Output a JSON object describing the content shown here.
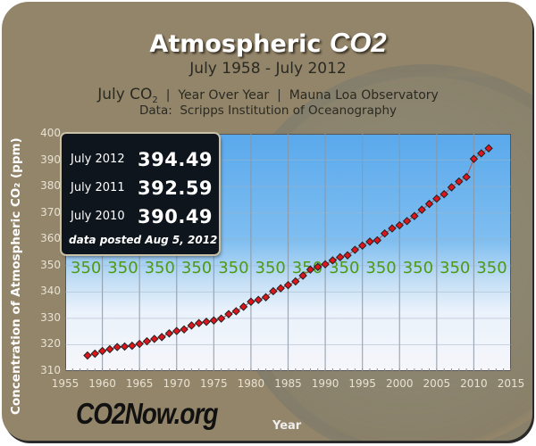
{
  "header": {
    "title_main": "Atmospheric ",
    "title_co2": "CO2",
    "subtitle": "July 1958 - July 2012",
    "meta_prefix": "July CO",
    "meta_sub": "2",
    "meta_rest": "  |  Year Over Year  |  Mauna Loa Observatory",
    "source": "Data:  Scripps Institution of Oceanography"
  },
  "infobox": {
    "rows": [
      {
        "label": "July 2012",
        "value": "394.49"
      },
      {
        "label": "July 2011",
        "value": "392.59"
      },
      {
        "label": "July 2010",
        "value": "390.49"
      }
    ],
    "posted": "data posted Aug 5, 2012"
  },
  "axes": {
    "ylabel": "Concentration of Atmospheric CO₂ (ppm)",
    "xlabel": "Year",
    "yticks": [
      "400",
      "390",
      "380",
      "370",
      "360",
      "350",
      "340",
      "330",
      "320",
      "310"
    ],
    "xticks": [
      "1955",
      "1960",
      "1965",
      "1970",
      "1975",
      "1980",
      "1985",
      "1990",
      "1995",
      "2000",
      "2005",
      "2010",
      "2015"
    ]
  },
  "reference_line": {
    "value": "350",
    "color": "#4f9a12",
    "count": 12
  },
  "logo": "CO2Now.org",
  "colors": {
    "frame": "#93856a",
    "marker": "#e0141b",
    "reference": "#4f9a12",
    "infobox_bg": "#0f151c"
  },
  "chart_data": {
    "type": "scatter",
    "title": "Atmospheric CO2",
    "subtitle": "July 1958 - July 2012",
    "xlabel": "Year",
    "ylabel": "Concentration of Atmospheric CO2 (ppm)",
    "xlim": [
      1955,
      2015
    ],
    "ylim": [
      310,
      400
    ],
    "grid": true,
    "reference_line": 350,
    "x": [
      1958,
      1959,
      1960,
      1961,
      1962,
      1963,
      1964,
      1965,
      1966,
      1967,
      1968,
      1969,
      1970,
      1971,
      1972,
      1973,
      1974,
      1975,
      1976,
      1977,
      1978,
      1979,
      1980,
      1981,
      1982,
      1983,
      1984,
      1985,
      1986,
      1987,
      1988,
      1989,
      1990,
      1991,
      1992,
      1993,
      1994,
      1995,
      1996,
      1997,
      1998,
      1999,
      2000,
      2001,
      2002,
      2003,
      2004,
      2005,
      2006,
      2007,
      2008,
      2009,
      2010,
      2011,
      2012
    ],
    "values": [
      315.9,
      316.6,
      317.6,
      318.3,
      319.1,
      319.3,
      319.6,
      320.3,
      321.3,
      322.2,
      322.9,
      324.3,
      325.2,
      325.8,
      327.3,
      328.2,
      328.7,
      329.2,
      329.9,
      331.6,
      332.7,
      334.4,
      336.3,
      337.0,
      338.0,
      340.3,
      341.4,
      342.6,
      344.0,
      346.2,
      348.5,
      349.5,
      350.5,
      352.0,
      353.2,
      353.9,
      356.0,
      357.6,
      359.1,
      359.6,
      362.2,
      364.1,
      365.3,
      366.9,
      368.8,
      371.2,
      373.4,
      375.4,
      377.1,
      379.7,
      381.9,
      383.6,
      390.49,
      392.59,
      394.49
    ]
  }
}
